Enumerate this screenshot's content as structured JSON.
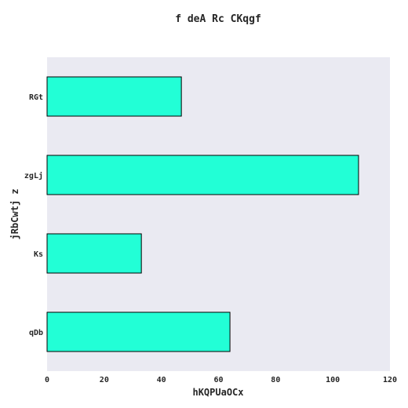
{
  "chart_data": {
    "type": "bar",
    "orientation": "horizontal",
    "title": "f deA Rc CKqgf",
    "xlabel": "hKQPUaOCx",
    "ylabel": "jRbCwtj z",
    "categories": [
      "RGt",
      "zgLj",
      "Ks",
      "qDb"
    ],
    "values": [
      47,
      109,
      33,
      64
    ],
    "xlim": [
      0,
      120
    ],
    "xticks": [
      0,
      20,
      40,
      60,
      80,
      100,
      120
    ],
    "grid": false,
    "legend": "none",
    "colors": {
      "bar_fill": "#22ffd6",
      "bar_edge": "#000000",
      "plot_background": "#eaeaf2"
    }
  }
}
